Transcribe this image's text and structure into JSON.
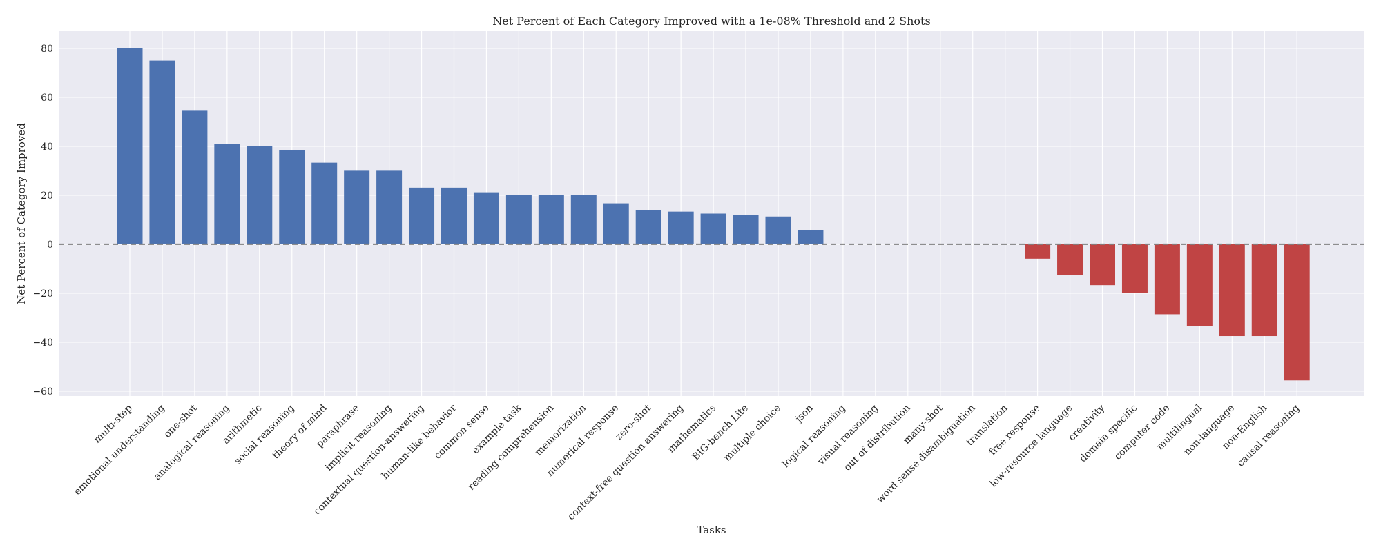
{
  "chart_data": {
    "type": "bar",
    "title": "Net Percent of Each Category Improved with a 1e-08% Threshold and 2 Shots",
    "xlabel": "Tasks",
    "ylabel": "Net Percent of Category Improved",
    "ylim": [
      -62,
      87
    ],
    "yticks": [
      -60,
      -40,
      -20,
      0,
      20,
      40,
      60,
      80
    ],
    "grid": true,
    "zero_line": true,
    "colors": {
      "positive": "#4c72b0",
      "negative": "#c04444",
      "background": "#eaeaf2",
      "grid": "#ffffff",
      "zero_line": "#808080"
    },
    "categories": [
      "multi-step",
      "emotional understanding",
      "one-shot",
      "analogical reasoning",
      "arithmetic",
      "social reasoning",
      "theory of mind",
      "paraphrase",
      "implicit reasoning",
      "contextual question-answering",
      "human-like behavior",
      "common sense",
      "example task",
      "reading comprehension",
      "memorization",
      "numerical response",
      "zero-shot",
      "context-free question answering",
      "mathematics",
      "BIG-bench Lite",
      "multiple choice",
      "json",
      "logical reasoning",
      "visual reasoning",
      "out of distribution",
      "many-shot",
      "word sense disambiguation",
      "translation",
      "free response",
      "low-resource language",
      "creativity",
      "domain specific",
      "computer code",
      "multilingual",
      "non-language",
      "non-English",
      "causal reasoning"
    ],
    "values": [
      80,
      75,
      54.5,
      41,
      40,
      38.3,
      33.3,
      30,
      30,
      23.1,
      23.1,
      21.2,
      20,
      20,
      20,
      16.7,
      14,
      13.3,
      12.5,
      12,
      11.3,
      5.6,
      0,
      0,
      0,
      0,
      0,
      0,
      -5.9,
      -12.5,
      -16.7,
      -20,
      -28.6,
      -33.3,
      -37.5,
      -37.5,
      -55.6
    ]
  }
}
